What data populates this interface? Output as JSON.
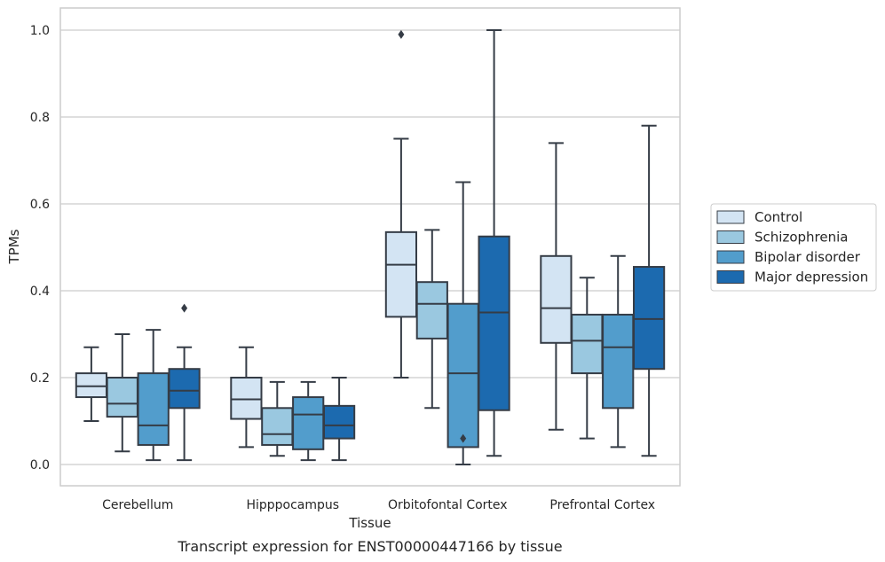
{
  "chart_data": {
    "type": "box",
    "xlabel": "Tissue",
    "ylabel": "TPMs",
    "caption": "Transcript expression for ENST00000447166 by tissue",
    "ylim": [
      -0.05,
      1.05
    ],
    "yticks": [
      0.0,
      0.2,
      0.4,
      0.6,
      0.8,
      1.0
    ],
    "ytick_labels": [
      "0.0",
      "0.2",
      "0.4",
      "0.6",
      "0.8",
      "1.0"
    ],
    "grid": "horizontal",
    "legend_placement": "right",
    "categories": [
      "Cerebellum",
      "Hipppocampus",
      "Orbitofontal Cortex",
      "Prefrontal Cortex"
    ],
    "series": [
      {
        "name": "Control",
        "color": "#d3e4f3",
        "boxes": [
          {
            "whisker_low": 0.1,
            "q1": 0.155,
            "median": 0.18,
            "q3": 0.21,
            "whisker_high": 0.27,
            "outliers": []
          },
          {
            "whisker_low": 0.04,
            "q1": 0.105,
            "median": 0.15,
            "q3": 0.2,
            "whisker_high": 0.27,
            "outliers": []
          },
          {
            "whisker_low": 0.2,
            "q1": 0.34,
            "median": 0.46,
            "q3": 0.535,
            "whisker_high": 0.75,
            "outliers": [
              0.99
            ]
          },
          {
            "whisker_low": 0.08,
            "q1": 0.28,
            "median": 0.36,
            "q3": 0.48,
            "whisker_high": 0.74,
            "outliers": []
          }
        ]
      },
      {
        "name": "Schizophrenia",
        "color": "#9ac8e0",
        "boxes": [
          {
            "whisker_low": 0.03,
            "q1": 0.11,
            "median": 0.14,
            "q3": 0.2,
            "whisker_high": 0.3,
            "outliers": []
          },
          {
            "whisker_low": 0.02,
            "q1": 0.045,
            "median": 0.07,
            "q3": 0.13,
            "whisker_high": 0.19,
            "outliers": []
          },
          {
            "whisker_low": 0.13,
            "q1": 0.29,
            "median": 0.37,
            "q3": 0.42,
            "whisker_high": 0.54,
            "outliers": []
          },
          {
            "whisker_low": 0.06,
            "q1": 0.21,
            "median": 0.285,
            "q3": 0.345,
            "whisker_high": 0.43,
            "outliers": []
          }
        ]
      },
      {
        "name": "Bipolar disorder",
        "color": "#529dcc",
        "boxes": [
          {
            "whisker_low": 0.01,
            "q1": 0.045,
            "median": 0.09,
            "q3": 0.21,
            "whisker_high": 0.31,
            "outliers": []
          },
          {
            "whisker_low": 0.01,
            "q1": 0.035,
            "median": 0.115,
            "q3": 0.155,
            "whisker_high": 0.19,
            "outliers": []
          },
          {
            "whisker_low": 0.0,
            "q1": 0.04,
            "median": 0.21,
            "q3": 0.37,
            "whisker_high": 0.65,
            "outliers": [
              0.06
            ]
          },
          {
            "whisker_low": 0.04,
            "q1": 0.13,
            "median": 0.27,
            "q3": 0.345,
            "whisker_high": 0.48,
            "outliers": []
          }
        ]
      },
      {
        "name": "Major depression",
        "color": "#1c6aaf",
        "boxes": [
          {
            "whisker_low": 0.01,
            "q1": 0.13,
            "median": 0.17,
            "q3": 0.22,
            "whisker_high": 0.27,
            "outliers": [
              0.36
            ]
          },
          {
            "whisker_low": 0.01,
            "q1": 0.06,
            "median": 0.09,
            "q3": 0.135,
            "whisker_high": 0.2,
            "outliers": []
          },
          {
            "whisker_low": 0.02,
            "q1": 0.125,
            "median": 0.35,
            "q3": 0.525,
            "whisker_high": 1.0,
            "outliers": []
          },
          {
            "whisker_low": 0.02,
            "q1": 0.22,
            "median": 0.335,
            "q3": 0.455,
            "whisker_high": 0.78,
            "outliers": []
          }
        ]
      }
    ],
    "colors": {
      "edge": "#353c46",
      "grid": "#cccccc",
      "frame": "#cccccc",
      "text": "#262626"
    }
  }
}
